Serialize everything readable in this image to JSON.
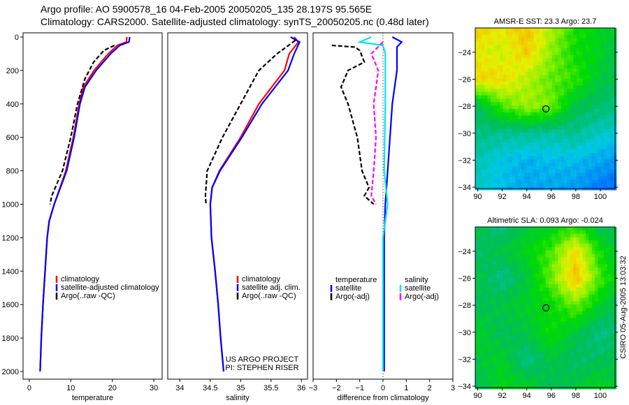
{
  "title": {
    "line1": "Argo profile: AO 5900578_16 04-Feb-2005 20050205_135 28.197S 95.565E",
    "line2": "Climatology: CARS2000. Satellite-adjusted climatology: synTS_20050205.nc (0.48d later)"
  },
  "side_stamp": "CSIRO 05-Aug-2005 13:03:32",
  "colors": {
    "climatology": "#ff0000",
    "satellite": "#0000ff",
    "argo": "#000000",
    "sal_satellite": "#00e5ee",
    "sal_argo": "#ff00ff"
  },
  "chart_data": [
    {
      "type": "line",
      "xlabel": "temperature",
      "xlim": [
        -1.5,
        32
      ],
      "ylim": [
        0,
        2000
      ],
      "xticks": [
        0,
        10,
        20,
        30
      ],
      "yticks": [
        0,
        200,
        400,
        600,
        800,
        1000,
        1200,
        1400,
        1600,
        1800,
        2000
      ],
      "legend": [
        "climatology",
        "satellite-adjusted climatology",
        "Argo(..raw -QC)"
      ],
      "series": [
        {
          "name": "climatology",
          "color": "#ff0000",
          "dash": false,
          "depth": [
            0,
            30,
            50,
            100,
            200,
            300,
            400,
            600,
            800,
            1000,
            1100,
            1200,
            1400,
            1600,
            1800,
            2000
          ],
          "values": [
            23.5,
            23.4,
            21.2,
            19.0,
            15.6,
            13.0,
            12.0,
            10.6,
            8.8,
            6.0,
            4.8,
            4.3,
            3.8,
            3.3,
            2.9,
            2.6
          ]
        },
        {
          "name": "satellite-adjusted climatology",
          "color": "#0000ff",
          "dash": false,
          "depth": [
            0,
            30,
            50,
            100,
            200,
            300,
            400,
            600,
            800,
            1000,
            1100,
            1200,
            1400,
            1600,
            1800,
            2000
          ],
          "values": [
            24.2,
            24.0,
            21.8,
            19.6,
            16.1,
            13.4,
            12.2,
            10.8,
            9.0,
            6.0,
            4.8,
            4.3,
            3.8,
            3.3,
            2.9,
            2.6
          ]
        },
        {
          "name": "Argo(..raw -QC)",
          "color": "#000000",
          "dash": true,
          "depth": [
            50,
            80,
            150,
            250,
            400,
            600,
            800,
            950,
            1000
          ],
          "values": [
            20.5,
            18.0,
            15.5,
            13.4,
            11.6,
            10.0,
            8.0,
            5.4,
            5.0
          ]
        }
      ],
      "annotation": []
    },
    {
      "type": "line",
      "xlabel": "salinity",
      "xlim": [
        33.8,
        36.1
      ],
      "ylim": [
        0,
        2000
      ],
      "xticks": [
        34,
        34.5,
        35,
        35.5,
        36
      ],
      "yticks": [],
      "legend": [
        "climatology",
        "satellite adj. clim.",
        "Argo(..raw -QC)"
      ],
      "series": [
        {
          "name": "climatology",
          "color": "#ff0000",
          "dash": false,
          "depth": [
            0,
            30,
            100,
            200,
            400,
            600,
            800,
            900,
            1000,
            1200,
            1400,
            1600,
            1800,
            2000
          ],
          "values": [
            35.88,
            35.95,
            35.8,
            35.72,
            35.3,
            35.0,
            34.65,
            34.53,
            34.5,
            34.52,
            34.58,
            34.63,
            34.67,
            34.72
          ]
        },
        {
          "name": "satellite adj. clim.",
          "color": "#0000ff",
          "dash": false,
          "depth": [
            0,
            30,
            100,
            200,
            400,
            600,
            800,
            900,
            1000,
            1200,
            1400,
            1600,
            1800,
            2000
          ],
          "values": [
            35.82,
            35.97,
            35.88,
            35.78,
            35.35,
            35.02,
            34.66,
            34.53,
            34.5,
            34.52,
            34.58,
            34.63,
            34.67,
            34.72
          ]
        },
        {
          "name": "Argo(..raw -QC)",
          "color": "#000000",
          "dash": true,
          "depth": [
            20,
            100,
            200,
            400,
            600,
            800,
            950,
            1000
          ],
          "values": [
            35.9,
            35.6,
            35.3,
            35.0,
            34.7,
            34.45,
            34.42,
            34.43
          ]
        }
      ],
      "annotation": [
        "US ARGO PROJECT",
        "PI: STEPHEN RISER"
      ]
    },
    {
      "type": "line",
      "xlabel": "difference from climatology",
      "xlim": [
        -3,
        3
      ],
      "ylim": [
        0,
        2000
      ],
      "xticks": [
        -3,
        -2,
        -1,
        0,
        1,
        2,
        3
      ],
      "yticks": [],
      "legend_groups": [
        {
          "title": "temperature",
          "items": [
            "satellite",
            "Argo(-adj)"
          ]
        },
        {
          "title": "salinity",
          "items": [
            "satellite",
            "Argo(-adj)"
          ]
        }
      ],
      "series": [
        {
          "name": "temperature satellite",
          "color": "#0000ff",
          "dash": false,
          "depth": [
            0,
            30,
            60,
            100,
            200,
            400,
            600,
            800,
            1000,
            1200,
            2000
          ],
          "values": [
            0.4,
            0.8,
            0.6,
            0.6,
            0.6,
            0.4,
            0.3,
            0.2,
            0.1,
            0.05,
            0.05
          ]
        },
        {
          "name": "temperature Argo(-adj)",
          "color": "#000000",
          "dash": true,
          "depth": [
            50,
            60,
            80,
            150,
            200,
            300,
            400,
            600,
            800,
            900,
            950,
            1000
          ],
          "values": [
            -2.2,
            -1.2,
            -1.0,
            -0.8,
            -1.5,
            -1.8,
            -1.5,
            -1.1,
            -0.9,
            -0.6,
            -0.8,
            -0.4
          ]
        },
        {
          "name": "salinity satellite",
          "color": "#00e5ee",
          "dash": false,
          "depth": [
            0,
            30,
            50,
            100,
            400,
            800,
            1000,
            1200,
            2000
          ],
          "values": [
            -0.5,
            -1.0,
            0,
            0.1,
            0.1,
            0.05,
            0.2,
            0,
            0
          ]
        },
        {
          "name": "salinity Argo(-adj)",
          "color": "#ff00ff",
          "dash": true,
          "depth": [
            30,
            100,
            200,
            400,
            600,
            800,
            950,
            1000
          ],
          "values": [
            0,
            -0.5,
            -0.2,
            -0.4,
            -0.3,
            -0.4,
            -0.5,
            -0.3
          ]
        }
      ]
    },
    {
      "type": "heatmap",
      "title": "AMSR-E SST: 23.3 Argo: 23.7",
      "xlim": [
        89.8,
        101.2
      ],
      "ylim": [
        -34.1,
        -22.2
      ],
      "xticks": [
        90,
        92,
        94,
        96,
        98,
        100
      ],
      "yticks": [
        -24,
        -26,
        -28,
        -30,
        -32,
        -34
      ],
      "marker": {
        "lon": 95.565,
        "lat": -28.197
      },
      "value_range": [
        21.0,
        25.0
      ],
      "grid_lats": [
        -22,
        -24,
        -26,
        -28,
        -30,
        -32,
        -34
      ],
      "grid_lons": [
        90,
        92,
        94,
        96,
        98,
        100,
        102
      ],
      "grid_values": [
        [
          24.6,
          24.4,
          24.7,
          24.0,
          23.3,
          23.0,
          22.9
        ],
        [
          24.3,
          24.1,
          24.6,
          23.8,
          23.2,
          23.0,
          22.5
        ],
        [
          24.5,
          24.5,
          24.0,
          23.6,
          23.4,
          22.8,
          22.5
        ],
        [
          22.6,
          23.5,
          23.9,
          23.7,
          22.7,
          22.5,
          22.4
        ],
        [
          22.4,
          22.3,
          22.3,
          22.2,
          22.3,
          22.0,
          21.9
        ],
        [
          22.1,
          21.8,
          21.6,
          21.7,
          21.7,
          21.5,
          21.3
        ],
        [
          22.0,
          21.7,
          21.5,
          21.5,
          21.4,
          21.1,
          20.9
        ]
      ]
    },
    {
      "type": "heatmap",
      "title": "Altimetric SLA: 0.093 Argo: -0.024",
      "xlim": [
        89.8,
        101.2
      ],
      "ylim": [
        -34.1,
        -22.2
      ],
      "xticks": [
        90,
        92,
        94,
        96,
        98,
        100
      ],
      "yticks": [
        -24,
        -26,
        -28,
        -30,
        -32,
        -34
      ],
      "marker": {
        "lon": 95.565,
        "lat": -28.197
      },
      "value_range": [
        -0.2,
        0.25
      ],
      "grid_lats": [
        -22,
        -24,
        -26,
        -28,
        -30,
        -32,
        -34
      ],
      "grid_lons": [
        90,
        92,
        94,
        96,
        98,
        100,
        102
      ],
      "grid_values": [
        [
          0.0,
          -0.05,
          0.0,
          0.02,
          0.05,
          -0.02,
          -0.03
        ],
        [
          -0.03,
          0.0,
          0.03,
          0.08,
          0.19,
          0.05,
          -0.02
        ],
        [
          0.0,
          -0.05,
          0.0,
          0.1,
          0.22,
          0.08,
          0.0
        ],
        [
          -0.02,
          0.0,
          0.02,
          0.04,
          0.1,
          0.02,
          -0.04
        ],
        [
          0.02,
          -0.02,
          0.0,
          0.05,
          0.0,
          -0.05,
          -0.02
        ],
        [
          0.0,
          0.02,
          -0.05,
          0.0,
          -0.03,
          -0.02,
          0.0
        ],
        [
          -0.02,
          0.03,
          0.02,
          -0.02,
          0.0,
          0.03,
          -0.02
        ]
      ]
    }
  ]
}
